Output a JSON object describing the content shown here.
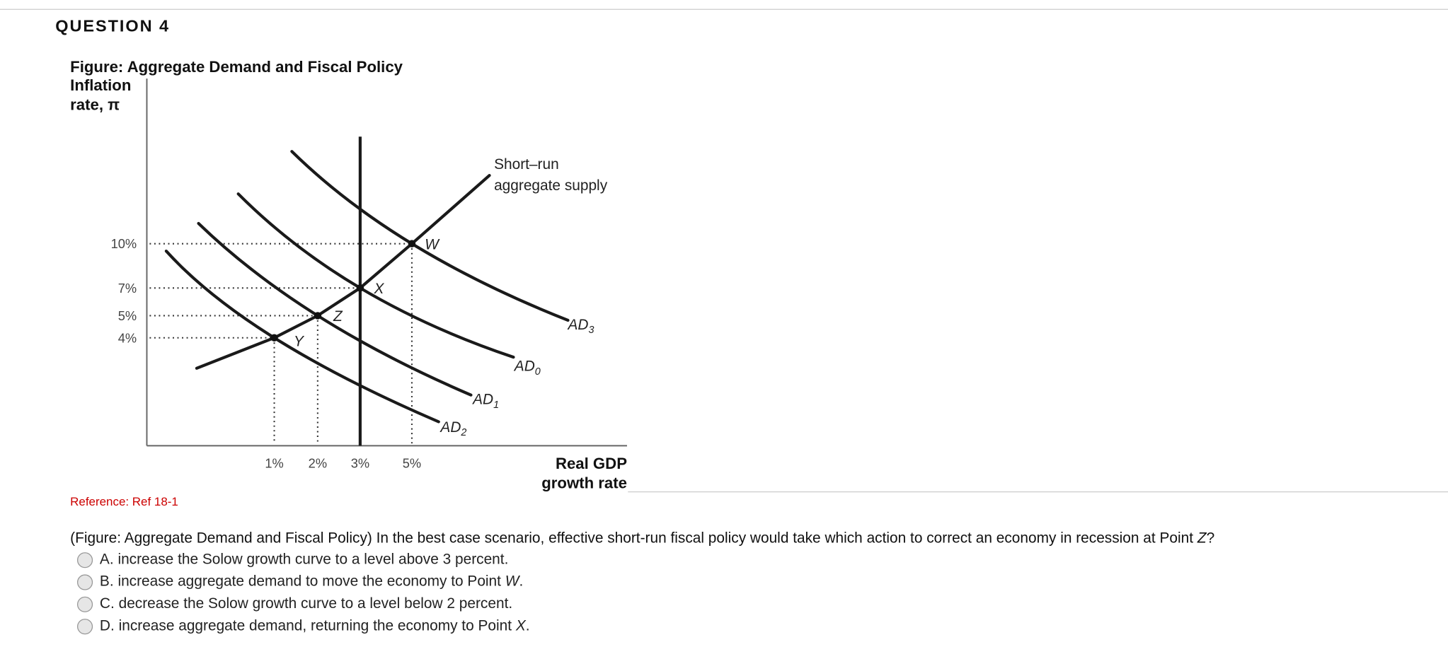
{
  "question": {
    "heading": "QUESTION 4"
  },
  "figure": {
    "title": "Figure: Aggregate Demand and Fiscal Policy",
    "y_label": [
      "Inflation",
      "rate, π"
    ],
    "x_label": [
      "Real GDP",
      "growth rate"
    ],
    "y_ticks": [
      "10%",
      "7%",
      "5%",
      "4%"
    ],
    "x_ticks": [
      "1%",
      "2%",
      "3%",
      "5%"
    ],
    "sras_label": [
      "Short–run",
      "aggregate supply"
    ],
    "curves": [
      {
        "label": "AD",
        "sub": "3"
      },
      {
        "label": "AD",
        "sub": "0"
      },
      {
        "label": "AD",
        "sub": "1"
      },
      {
        "label": "AD",
        "sub": "2"
      }
    ],
    "points": [
      "W",
      "X",
      "Z",
      "Y"
    ]
  },
  "reference": "Reference: Ref 18-1",
  "prompt": {
    "text": "(Figure: Aggregate Demand and Fiscal Policy) In the best case scenario, effective short-run fiscal policy would take which action to correct an economy in recession at Point ",
    "point": "Z",
    "end": "?"
  },
  "options": [
    {
      "letter": "A.",
      "text": "increase the Solow growth curve to a level above 3 percent."
    },
    {
      "letter": "B.",
      "text": "increase aggregate demand to move the economy to Point ",
      "point": "W",
      "end": "."
    },
    {
      "letter": "C.",
      "text": "decrease the Solow growth curve to a level below 2 percent."
    },
    {
      "letter": "D.",
      "text": "increase aggregate demand, returning the economy to Point ",
      "point": "X",
      "end": "."
    }
  ]
}
